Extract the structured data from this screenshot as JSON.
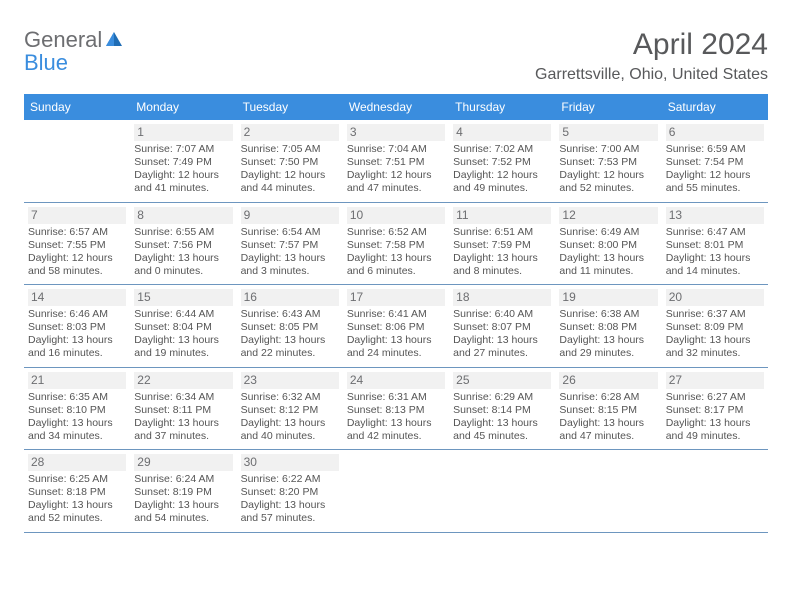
{
  "logo": {
    "line1": "General",
    "line2": "Blue"
  },
  "title": "April 2024",
  "location": "Garrettsville, Ohio, United States",
  "accent_color": "#3a8dde",
  "text_color": "#555555",
  "header_text_color": "#58595b",
  "weekday_bg": "#3a8dde",
  "weekday_fg": "#ffffff",
  "row_border_color": "#6d96bf",
  "daynum_bg": "#f1f1f1",
  "weekdays": [
    "Sunday",
    "Monday",
    "Tuesday",
    "Wednesday",
    "Thursday",
    "Friday",
    "Saturday"
  ],
  "weeks": [
    [
      null,
      {
        "n": "1",
        "sunrise": "7:07 AM",
        "sunset": "7:49 PM",
        "daylight": "12 hours and 41 minutes."
      },
      {
        "n": "2",
        "sunrise": "7:05 AM",
        "sunset": "7:50 PM",
        "daylight": "12 hours and 44 minutes."
      },
      {
        "n": "3",
        "sunrise": "7:04 AM",
        "sunset": "7:51 PM",
        "daylight": "12 hours and 47 minutes."
      },
      {
        "n": "4",
        "sunrise": "7:02 AM",
        "sunset": "7:52 PM",
        "daylight": "12 hours and 49 minutes."
      },
      {
        "n": "5",
        "sunrise": "7:00 AM",
        "sunset": "7:53 PM",
        "daylight": "12 hours and 52 minutes."
      },
      {
        "n": "6",
        "sunrise": "6:59 AM",
        "sunset": "7:54 PM",
        "daylight": "12 hours and 55 minutes."
      }
    ],
    [
      {
        "n": "7",
        "sunrise": "6:57 AM",
        "sunset": "7:55 PM",
        "daylight": "12 hours and 58 minutes."
      },
      {
        "n": "8",
        "sunrise": "6:55 AM",
        "sunset": "7:56 PM",
        "daylight": "13 hours and 0 minutes."
      },
      {
        "n": "9",
        "sunrise": "6:54 AM",
        "sunset": "7:57 PM",
        "daylight": "13 hours and 3 minutes."
      },
      {
        "n": "10",
        "sunrise": "6:52 AM",
        "sunset": "7:58 PM",
        "daylight": "13 hours and 6 minutes."
      },
      {
        "n": "11",
        "sunrise": "6:51 AM",
        "sunset": "7:59 PM",
        "daylight": "13 hours and 8 minutes."
      },
      {
        "n": "12",
        "sunrise": "6:49 AM",
        "sunset": "8:00 PM",
        "daylight": "13 hours and 11 minutes."
      },
      {
        "n": "13",
        "sunrise": "6:47 AM",
        "sunset": "8:01 PM",
        "daylight": "13 hours and 14 minutes."
      }
    ],
    [
      {
        "n": "14",
        "sunrise": "6:46 AM",
        "sunset": "8:03 PM",
        "daylight": "13 hours and 16 minutes."
      },
      {
        "n": "15",
        "sunrise": "6:44 AM",
        "sunset": "8:04 PM",
        "daylight": "13 hours and 19 minutes."
      },
      {
        "n": "16",
        "sunrise": "6:43 AM",
        "sunset": "8:05 PM",
        "daylight": "13 hours and 22 minutes."
      },
      {
        "n": "17",
        "sunrise": "6:41 AM",
        "sunset": "8:06 PM",
        "daylight": "13 hours and 24 minutes."
      },
      {
        "n": "18",
        "sunrise": "6:40 AM",
        "sunset": "8:07 PM",
        "daylight": "13 hours and 27 minutes."
      },
      {
        "n": "19",
        "sunrise": "6:38 AM",
        "sunset": "8:08 PM",
        "daylight": "13 hours and 29 minutes."
      },
      {
        "n": "20",
        "sunrise": "6:37 AM",
        "sunset": "8:09 PM",
        "daylight": "13 hours and 32 minutes."
      }
    ],
    [
      {
        "n": "21",
        "sunrise": "6:35 AM",
        "sunset": "8:10 PM",
        "daylight": "13 hours and 34 minutes."
      },
      {
        "n": "22",
        "sunrise": "6:34 AM",
        "sunset": "8:11 PM",
        "daylight": "13 hours and 37 minutes."
      },
      {
        "n": "23",
        "sunrise": "6:32 AM",
        "sunset": "8:12 PM",
        "daylight": "13 hours and 40 minutes."
      },
      {
        "n": "24",
        "sunrise": "6:31 AM",
        "sunset": "8:13 PM",
        "daylight": "13 hours and 42 minutes."
      },
      {
        "n": "25",
        "sunrise": "6:29 AM",
        "sunset": "8:14 PM",
        "daylight": "13 hours and 45 minutes."
      },
      {
        "n": "26",
        "sunrise": "6:28 AM",
        "sunset": "8:15 PM",
        "daylight": "13 hours and 47 minutes."
      },
      {
        "n": "27",
        "sunrise": "6:27 AM",
        "sunset": "8:17 PM",
        "daylight": "13 hours and 49 minutes."
      }
    ],
    [
      {
        "n": "28",
        "sunrise": "6:25 AM",
        "sunset": "8:18 PM",
        "daylight": "13 hours and 52 minutes."
      },
      {
        "n": "29",
        "sunrise": "6:24 AM",
        "sunset": "8:19 PM",
        "daylight": "13 hours and 54 minutes."
      },
      {
        "n": "30",
        "sunrise": "6:22 AM",
        "sunset": "8:20 PM",
        "daylight": "13 hours and 57 minutes."
      },
      null,
      null,
      null,
      null
    ]
  ],
  "labels": {
    "sunrise_prefix": "Sunrise: ",
    "sunset_prefix": "Sunset: ",
    "daylight_prefix": "Daylight: "
  }
}
